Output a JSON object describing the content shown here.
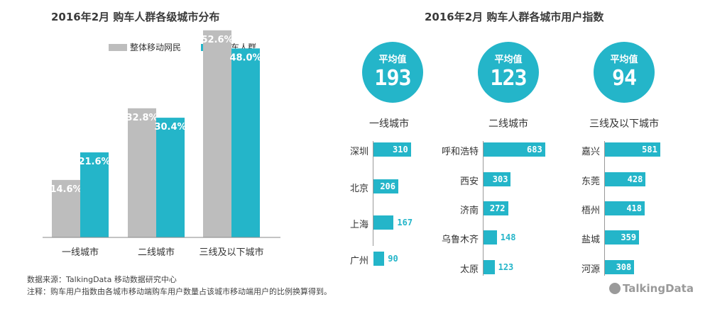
{
  "left": {
    "title": "2016年2月 购车人群各级城市分布",
    "chart_data": {
      "type": "bar",
      "categories": [
        "一线城市",
        "二线城市",
        "三线及以下城市"
      ],
      "series": [
        {
          "name": "整体移动网民",
          "values": [
            14.6,
            32.8,
            52.6
          ],
          "labels": [
            "14.6%",
            "32.8%",
            "52.6%"
          ],
          "color": "#bdbdbd"
        },
        {
          "name": "购车人群",
          "values": [
            21.6,
            30.4,
            48.0
          ],
          "labels": [
            "21.6%",
            "30.4%",
            "48.0%"
          ],
          "color": "#24b5c9"
        }
      ],
      "ylim": [
        0,
        60
      ]
    }
  },
  "right": {
    "title": "2016年2月 购车人群各城市用户指数",
    "avg_label": "平均值",
    "chart_data": {
      "type": "bar",
      "orientation": "horizontal",
      "color": "#24b5c9",
      "tiers": [
        {
          "tier": "一线城市",
          "average": "193",
          "cities": [
            "深圳",
            "北京",
            "上海",
            "广州"
          ],
          "values": [
            310,
            206,
            167,
            90
          ]
        },
        {
          "tier": "二线城市",
          "average": "123",
          "cities": [
            "呼和浩特",
            "西安",
            "济南",
            "乌鲁木齐",
            "太原"
          ],
          "values": [
            683,
            303,
            272,
            148,
            123
          ]
        },
        {
          "tier": "三线及以下城市",
          "average": "94",
          "cities": [
            "嘉兴",
            "东莞",
            "梧州",
            "盐城",
            "河源"
          ],
          "values": [
            581,
            428,
            418,
            359,
            308
          ]
        }
      ]
    }
  },
  "footer": {
    "source": "数据来源：TalkingData 移动数据研究中心",
    "note": "注释：购车用户指数由各城市移动端购车用户数量占该城市移动端用户的比例换算得到。"
  },
  "logo": "TalkingData"
}
